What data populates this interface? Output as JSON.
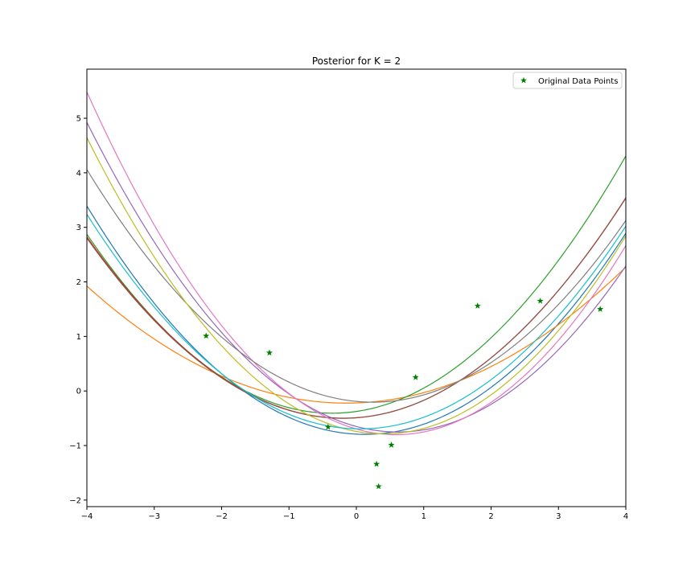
{
  "chart_data": {
    "type": "line",
    "title": "Posterior for K = 2",
    "xlabel": "",
    "ylabel": "",
    "xlim": [
      -4,
      4
    ],
    "ylim": [
      -2.12,
      5.9
    ],
    "x_ticks": [
      -4,
      -3,
      -2,
      -1,
      0,
      1,
      2,
      3,
      4
    ],
    "y_ticks": [
      -2,
      -1,
      0,
      1,
      2,
      3,
      4,
      5
    ],
    "grid": false,
    "legend": {
      "position": "top-right",
      "entries": [
        "Original Data Points"
      ]
    },
    "curve_model": "y = a*x^2 + b*x + c",
    "series": [
      {
        "color": "#1f77b4",
        "coefficients": [
          0.2458,
          -0.0625,
          -0.7916
        ]
      },
      {
        "color": "#ff7f0e",
        "coefficients": [
          0.1448,
          0.0437,
          -0.2189
        ]
      },
      {
        "color": "#2ca02c",
        "coefficients": [
          0.2479,
          0.1795,
          -0.375
        ]
      },
      {
        "color": "#d62728",
        "coefficients": [
          0.2296,
          0.0896,
          -0.4896
        ]
      },
      {
        "color": "#9467bd",
        "coefficients": [
          0.2661,
          -0.3292,
          -0.65
        ]
      },
      {
        "color": "#8c564b",
        "coefficients": [
          0.2288,
          0.0917,
          -0.4917
        ]
      },
      {
        "color": "#e377c2",
        "coefficients": [
          0.2981,
          -0.3521,
          -0.6969
        ]
      },
      {
        "color": "#7f7f7f",
        "coefficients": [
          0.2364,
          -0.1167,
          -0.1908
        ]
      },
      {
        "color": "#bcbd22",
        "coefficients": [
          0.2804,
          -0.225,
          -0.7416
        ]
      },
      {
        "color": "#17becf",
        "coefficients": [
          0.239,
          -0.0271,
          -0.6938
        ]
      }
    ],
    "scatter": {
      "name": "Original Data Points",
      "color": "#008000",
      "marker": "star",
      "points": [
        [
          -2.23,
          1.01
        ],
        [
          -1.29,
          0.7
        ],
        [
          -0.42,
          -0.66
        ],
        [
          0.3,
          -1.34
        ],
        [
          0.33,
          -1.75
        ],
        [
          0.52,
          -0.99
        ],
        [
          0.88,
          0.25
        ],
        [
          1.8,
          1.56
        ],
        [
          2.73,
          1.65
        ],
        [
          3.62,
          1.5
        ]
      ]
    }
  }
}
